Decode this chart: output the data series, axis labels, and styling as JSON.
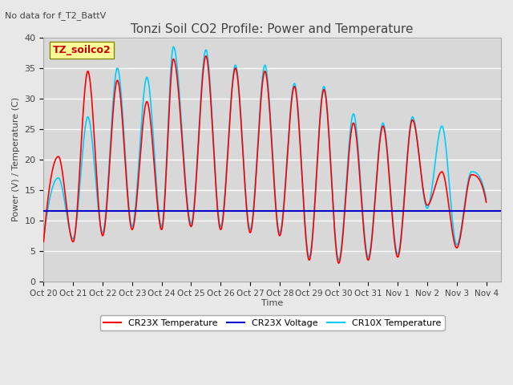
{
  "title": "Tonzi Soil CO2 Profile: Power and Temperature",
  "subtitle": "No data for f_T2_BattV",
  "ylabel": "Power (V) / Temperature (C)",
  "xlabel": "Time",
  "ylim": [
    0,
    40
  ],
  "xlim_days": [
    0,
    15.5
  ],
  "tick_labels": [
    "Oct 20",
    "Oct 21",
    "Oct 22",
    "Oct 23",
    "Oct 24",
    "Oct 25",
    "Oct 26",
    "Oct 27",
    "Oct 28",
    "Oct 29",
    "Oct 30",
    "Oct 31",
    "Nov 1",
    "Nov 2",
    "Nov 3",
    "Nov 4"
  ],
  "voltage_value": 11.5,
  "legend_label_box": "TZ_soilco2",
  "legend_entries": [
    "CR23X Temperature",
    "CR23X Voltage",
    "CR10X Temperature"
  ],
  "legend_colors": [
    "#ff0000",
    "#0000cc",
    "#00ccff"
  ],
  "bg_color": "#e8e8e8",
  "plot_bg_color": "#d8d8d8",
  "grid_color": "#ffffff",
  "cr23x_temp_peaks": [
    20.5,
    34.5,
    33.0,
    29.5,
    36.5,
    37.0,
    35.0,
    34.5,
    32.0,
    31.5,
    26.0,
    25.5,
    26.5,
    18.0,
    17.5
  ],
  "cr23x_temp_troughs": [
    6.5,
    7.5,
    8.5,
    8.5,
    9.0,
    8.5,
    8.0,
    7.5,
    3.5,
    3.0,
    3.5,
    4.0,
    12.5,
    5.5,
    13.0
  ],
  "cr10x_temp_peaks": [
    17.0,
    27.0,
    35.0,
    33.5,
    38.5,
    38.0,
    35.5,
    35.5,
    32.5,
    32.0,
    27.5,
    26.0,
    27.0,
    25.5,
    18.0
  ],
  "cr10x_temp_troughs": [
    7.0,
    8.0,
    9.0,
    9.0,
    9.5,
    9.0,
    8.5,
    8.0,
    4.0,
    3.5,
    4.0,
    4.5,
    12.0,
    6.0,
    13.5
  ],
  "peak_offsets": [
    0.5,
    1.5,
    2.5,
    3.5,
    4.4,
    5.5,
    6.5,
    7.5,
    8.5,
    9.5,
    10.5,
    11.5,
    12.5,
    13.5,
    14.5
  ],
  "trough_offsets": [
    1.0,
    2.0,
    3.0,
    4.0,
    5.0,
    6.0,
    7.0,
    8.0,
    9.0,
    10.0,
    11.0,
    12.0,
    13.0,
    14.0,
    15.0
  ]
}
